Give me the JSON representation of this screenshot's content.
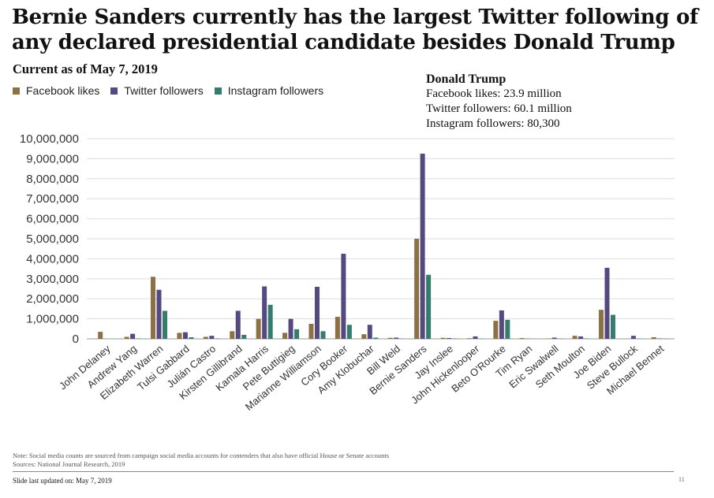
{
  "headline": "Bernie Sanders currently has the largest Twitter following of any declared presidential candidate besides Donald Trump",
  "subtitle": "Current as of May 7, 2019",
  "trump": {
    "title": "Donald Trump",
    "facebook": "Facebook likes: 23.9 million",
    "twitter": "Twitter followers: 60.1 million",
    "instagram": "Instagram followers: 80,300"
  },
  "footnote": {
    "note": "Note: Social media counts are sourced from campaign social media accounts for contenders that also have official House or Senate accounts",
    "sources": "Sources: National Journal Research, 2019"
  },
  "updated": "Slide last updated on: May 7, 2019",
  "page_number": "11",
  "chart_data": {
    "type": "bar",
    "title": "",
    "xlabel": "",
    "ylabel": "",
    "ylim": [
      0,
      10000000
    ],
    "yticks": [
      0,
      1000000,
      2000000,
      3000000,
      4000000,
      5000000,
      6000000,
      7000000,
      8000000,
      9000000,
      10000000
    ],
    "ytick_labels": [
      "0",
      "1,000,000",
      "2,000,000",
      "3,000,000",
      "4,000,000",
      "5,000,000",
      "6,000,000",
      "7,000,000",
      "8,000,000",
      "9,000,000",
      "10,000,000"
    ],
    "grid": true,
    "legend_position": "top-left",
    "categories": [
      "John Delaney",
      "Andrew Yang",
      "Elizabeth Warren",
      "Tulsi Gabbard",
      "Julián Castro",
      "Kirsten Gillibrand",
      "Kamala Harris",
      "Pete Buttigieg",
      "Marianne Williamson",
      "Cory Booker",
      "Amy Klobuchar",
      "Bill Weld",
      "Bernie Sanders",
      "Jay Inslee",
      "John Hickenlooper",
      "Beto O'Rourke",
      "Tim Ryan",
      "Eric Swalwell",
      "Seth Moulton",
      "Joe Biden",
      "Steve Bullock",
      "Michael Bennet"
    ],
    "series": [
      {
        "name": "Facebook likes",
        "color": "#8d7043",
        "values": [
          350000,
          100000,
          3100000,
          300000,
          100000,
          380000,
          1000000,
          300000,
          750000,
          1100000,
          230000,
          50000,
          5000000,
          50000,
          30000,
          900000,
          40000,
          20000,
          150000,
          1450000,
          10000,
          80000
        ]
      },
      {
        "name": "Twitter followers",
        "color": "#55497f",
        "values": [
          0,
          250000,
          2450000,
          330000,
          150000,
          1400000,
          2620000,
          1000000,
          2600000,
          4250000,
          700000,
          60000,
          9250000,
          40000,
          120000,
          1420000,
          10000,
          60000,
          120000,
          3550000,
          150000,
          20000
        ]
      },
      {
        "name": "Instagram followers",
        "color": "#357b6e",
        "values": [
          0,
          20000,
          1400000,
          80000,
          20000,
          200000,
          1700000,
          480000,
          380000,
          700000,
          60000,
          10000,
          3200000,
          20000,
          10000,
          950000,
          5000,
          10000,
          20000,
          1200000,
          10000,
          10000
        ]
      }
    ]
  }
}
